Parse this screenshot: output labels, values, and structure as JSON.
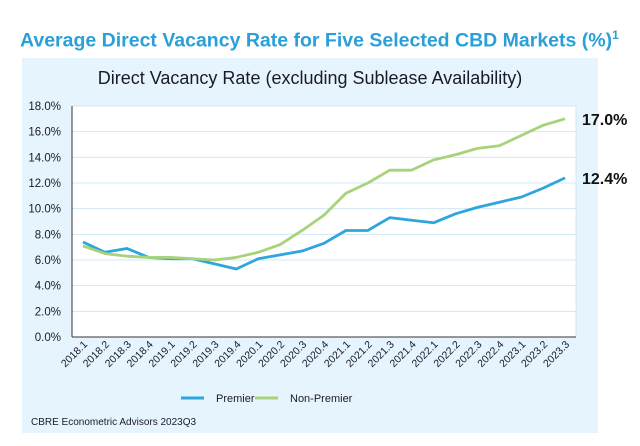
{
  "chart_data": {
    "type": "line",
    "title": "Average Direct Vacancy Rate for Five Selected CBD Markets (%)",
    "title_superscript": "1",
    "subtitle": "Direct Vacancy Rate (excluding Sublease Availability)",
    "xlabel": "",
    "ylabel": "",
    "ylim": [
      0,
      18
    ],
    "yticks": [
      "0.0%",
      "2.0%",
      "4.0%",
      "6.0%",
      "8.0%",
      "10.0%",
      "12.0%",
      "14.0%",
      "16.0%",
      "18.0%"
    ],
    "grid": true,
    "legend_position": "bottom",
    "categories": [
      "2018.1",
      "2018.2",
      "2018.3",
      "2018.4",
      "2019.1",
      "2019.2",
      "2019.3",
      "2019.4",
      "2020.1",
      "2020.2",
      "2020.3",
      "2020.4",
      "2021.1",
      "2021.2",
      "2021.3",
      "2021.4",
      "2022.1",
      "2022.2",
      "2022.3",
      "2022.4",
      "2023.1",
      "2023.2",
      "2023.3"
    ],
    "series": [
      {
        "name": "Premier",
        "color": "#2ea6dd",
        "end_label": "12.4%",
        "values": [
          7.4,
          6.6,
          6.9,
          6.2,
          6.1,
          6.1,
          5.7,
          5.3,
          6.1,
          6.4,
          6.7,
          7.3,
          8.3,
          8.3,
          9.3,
          9.1,
          8.9,
          9.6,
          10.1,
          10.5,
          10.9,
          11.6,
          12.4
        ]
      },
      {
        "name": "Non-Premier",
        "color": "#a8d37a",
        "end_label": "17.0%",
        "values": [
          7.1,
          6.5,
          6.3,
          6.2,
          6.2,
          6.1,
          6.0,
          6.2,
          6.6,
          7.2,
          8.3,
          9.5,
          11.2,
          12.0,
          13.0,
          13.0,
          13.8,
          14.2,
          14.7,
          14.9,
          15.7,
          16.5,
          17.0
        ]
      }
    ]
  },
  "source": "CBRE Econometric Advisors 2023Q3"
}
